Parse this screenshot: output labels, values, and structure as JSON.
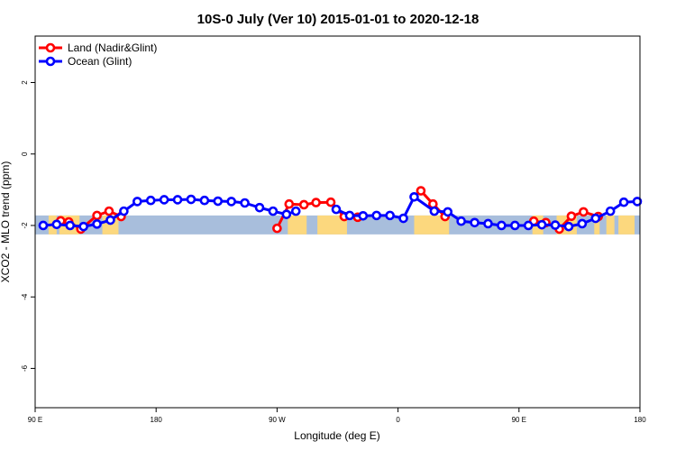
{
  "chart_data": {
    "type": "line",
    "title": "10S-0 July (Ver 10)   2015-01-01 to 2020-12-18",
    "xlabel": "Longitude (deg E)",
    "ylabel": "XCO2 - MLO trend (ppm)",
    "xlim": [
      90,
      540
    ],
    "ylim": [
      -7.1,
      3.3
    ],
    "x_ticks": [
      {
        "value": 90,
        "label": "90 E"
      },
      {
        "value": 180,
        "label": "180"
      },
      {
        "value": 270,
        "label": "90 W"
      },
      {
        "value": 360,
        "label": "0"
      },
      {
        "value": 450,
        "label": "90 E"
      },
      {
        "value": 540,
        "label": "180"
      }
    ],
    "y_ticks": [
      {
        "value": 2,
        "label": "2"
      },
      {
        "value": 0,
        "label": "0"
      },
      {
        "value": -2,
        "label": "-2"
      },
      {
        "value": -4,
        "label": "-4"
      },
      {
        "value": -6,
        "label": "-6"
      }
    ],
    "legend_position": "top-left",
    "map_band": {
      "lat_range": [
        -10,
        0
      ],
      "y_range": [
        -2.25,
        -1.72
      ],
      "ocean_color": "#a8bedc",
      "land_color": "#fcd87e",
      "land_segments": [
        [
          100,
          106
        ],
        [
          108,
          123
        ],
        [
          140,
          152
        ],
        [
          278,
          292
        ],
        [
          300,
          322
        ],
        [
          372,
          398
        ],
        [
          460,
          468
        ],
        [
          478,
          493
        ],
        [
          506,
          510
        ],
        [
          515,
          521
        ],
        [
          524,
          536
        ]
      ]
    },
    "series": [
      {
        "name": "Land (Nadir&Glint)",
        "color": "#ff0000",
        "points": [
          [
            109,
            -1.87
          ],
          [
            115,
            -1.9
          ],
          [
            124,
            -2.1
          ],
          [
            136,
            -1.72
          ],
          [
            145,
            -1.6
          ],
          [
            154,
            -1.75
          ],
          [
            270,
            -2.08
          ],
          [
            279,
            -1.4
          ],
          [
            290,
            -1.42
          ],
          [
            299,
            -1.36
          ],
          [
            310,
            -1.35
          ],
          [
            320,
            -1.75
          ],
          [
            330,
            -1.77
          ],
          [
            377,
            -1.03
          ],
          [
            386,
            -1.4
          ],
          [
            395,
            -1.75
          ],
          [
            461,
            -1.88
          ],
          [
            470,
            -1.92
          ],
          [
            480,
            -2.1
          ],
          [
            489,
            -1.74
          ],
          [
            498,
            -1.62
          ],
          [
            509,
            -1.75
          ]
        ]
      },
      {
        "name": "Ocean (Glint)",
        "color": "#0000ff",
        "points": [
          [
            96,
            -2.0
          ],
          [
            106,
            -1.97
          ],
          [
            116,
            -2.0
          ],
          [
            126,
            -2.03
          ],
          [
            136,
            -1.96
          ],
          [
            146,
            -1.85
          ],
          [
            156,
            -1.6
          ],
          [
            166,
            -1.33
          ],
          [
            176,
            -1.3
          ],
          [
            186,
            -1.28
          ],
          [
            196,
            -1.28
          ],
          [
            206,
            -1.27
          ],
          [
            216,
            -1.3
          ],
          [
            226,
            -1.32
          ],
          [
            236,
            -1.33
          ],
          [
            246,
            -1.37
          ],
          [
            257,
            -1.5
          ],
          [
            267,
            -1.6
          ],
          [
            277,
            -1.69
          ],
          [
            284,
            -1.6
          ],
          [
            314,
            -1.55
          ],
          [
            324,
            -1.72
          ],
          [
            334,
            -1.73
          ],
          [
            344,
            -1.72
          ],
          [
            354,
            -1.72
          ],
          [
            364,
            -1.8
          ],
          [
            372,
            -1.2
          ],
          [
            387,
            -1.6
          ],
          [
            397,
            -1.62
          ],
          [
            407,
            -1.88
          ],
          [
            417,
            -1.92
          ],
          [
            427,
            -1.95
          ],
          [
            437,
            -2.0
          ],
          [
            447,
            -2.0
          ],
          [
            457,
            -2.0
          ],
          [
            467,
            -1.98
          ],
          [
            477,
            -1.99
          ],
          [
            487,
            -2.03
          ],
          [
            497,
            -1.95
          ],
          [
            507,
            -1.8
          ],
          [
            518,
            -1.6
          ],
          [
            528,
            -1.35
          ],
          [
            538,
            -1.33
          ]
        ]
      }
    ]
  }
}
